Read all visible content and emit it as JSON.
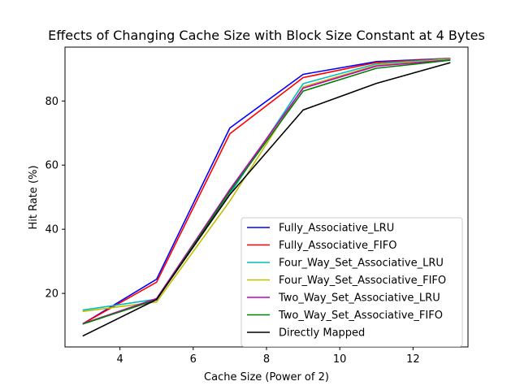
{
  "chart_data": {
    "type": "line",
    "title": "Effects of Changing Cache Size with Block Size Constant at 4 Bytes",
    "xlabel": "Cache Size (Power of 2)",
    "ylabel": "Hit Rate (%)",
    "xlim": [
      2.5,
      13.5
    ],
    "ylim": [
      3.3,
      96.8
    ],
    "xticks": [
      4,
      6,
      8,
      10,
      12
    ],
    "yticks": [
      20,
      40,
      60,
      80
    ],
    "grid": false,
    "legend_position": "lower-right",
    "x": [
      3,
      5,
      7,
      9,
      11,
      13
    ],
    "series": [
      {
        "name": "Fully_Associative_LRU",
        "color": "#0000ff",
        "values": [
          10.6,
          24.4,
          71.6,
          88.3,
          92.3,
          93.3
        ]
      },
      {
        "name": "Fully_Associative_FIFO",
        "color": "#ff0000",
        "values": [
          10.6,
          23.5,
          69.8,
          87.3,
          92.0,
          93.3
        ]
      },
      {
        "name": "Four_Way_Set_Associative_LRU",
        "color": "#00bfbf",
        "values": [
          14.8,
          18.2,
          51.0,
          85.4,
          91.6,
          93.2
        ]
      },
      {
        "name": "Four_Way_Set_Associative_FIFO",
        "color": "#bfbf00",
        "values": [
          14.4,
          17.3,
          48.8,
          84.4,
          91.2,
          93.0
        ]
      },
      {
        "name": "Two_Way_Set_Associative_LRU",
        "color": "#bf00bf",
        "values": [
          10.6,
          18.4,
          52.4,
          84.0,
          90.9,
          92.8
        ]
      },
      {
        "name": "Two_Way_Set_Associative_FIFO",
        "color": "#008000",
        "values": [
          10.5,
          18.0,
          51.8,
          83.1,
          90.2,
          92.7
        ]
      },
      {
        "name": "Directly Mapped",
        "color": "#000000",
        "values": [
          6.8,
          18.1,
          50.8,
          77.2,
          85.5,
          91.9
        ]
      }
    ]
  }
}
